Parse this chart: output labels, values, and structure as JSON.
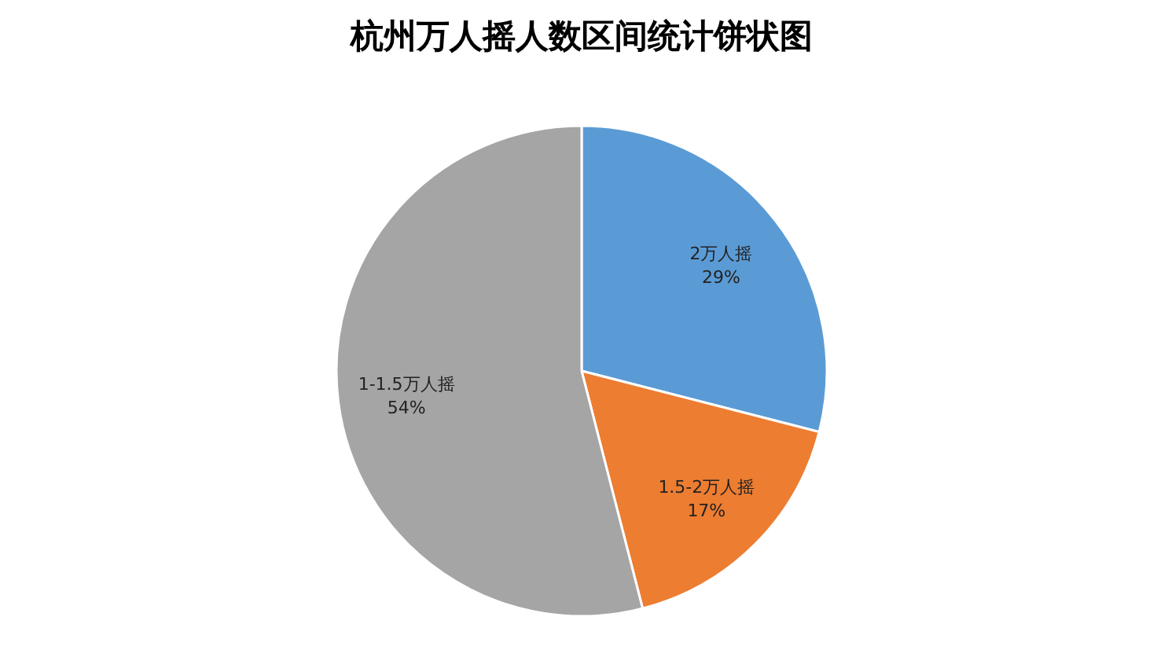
{
  "chart_data": {
    "type": "pie",
    "title": "杭州万人摇人数区间统计饼状图",
    "categories": [
      "2万人摇",
      "1.5-2万人摇",
      "1-1.5万人摇"
    ],
    "values": [
      29,
      17,
      54
    ],
    "value_labels": [
      "29%",
      "17%",
      "54%"
    ],
    "colors": [
      "#5b9bd5",
      "#ed7d31",
      "#a5a5a5"
    ],
    "legend": false
  }
}
